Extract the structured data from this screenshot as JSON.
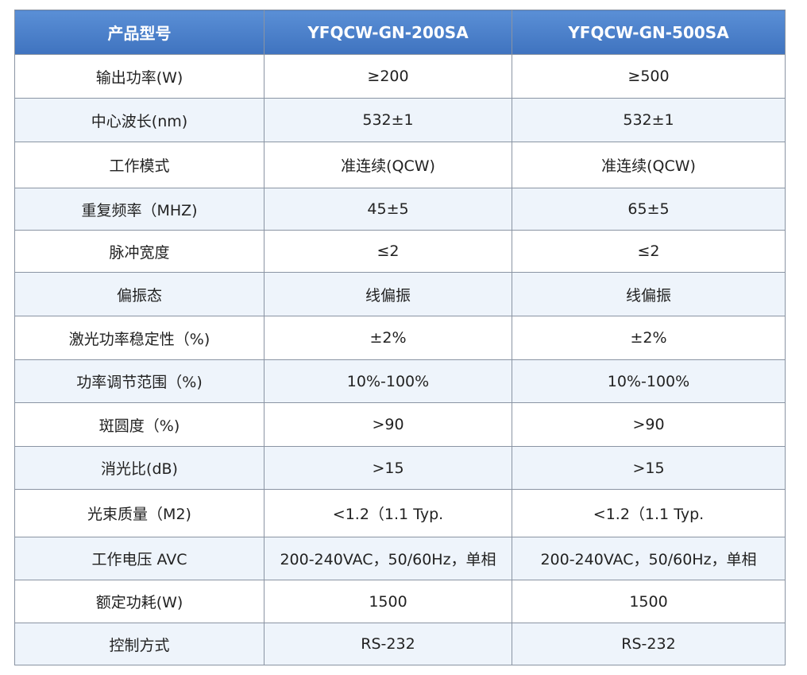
{
  "table": {
    "header": [
      "产品型号",
      "YFQCW-GN-200SA",
      "YFQCW-GN-500SA"
    ],
    "rows": [
      [
        "输出功率(W)",
        "≥200",
        "≥500"
      ],
      [
        "中心波长(nm)",
        "532±1",
        "532±1"
      ],
      [
        "工作模式",
        "准连续(QCW)",
        "准连续(QCW)"
      ],
      [
        "重复频率（MHZ)",
        "45±5",
        "65±5"
      ],
      [
        "脉冲宽度",
        "≤2",
        "≤2"
      ],
      [
        "偏振态",
        "线偏振",
        "线偏振"
      ],
      [
        "激光功率稳定性（%)",
        "±2%",
        "±2%"
      ],
      [
        "功率调节范围（%)",
        "10%-100%",
        "10%-100%"
      ],
      [
        "斑圆度（%)",
        ">90",
        ">90"
      ],
      [
        "消光比(dB)",
        ">15",
        ">15"
      ],
      [
        "光束质量（M2)",
        "<1.2（1.1 Typ.",
        "<1.2（1.1 Typ."
      ],
      [
        "工作电压 AVC",
        "200-240VAC，50/60Hz，单相",
        "200-240VAC，50/60Hz，单相"
      ],
      [
        "额定功耗(W)",
        "1500",
        "1500"
      ],
      [
        "控制方式",
        "RS-232",
        "RS-232"
      ]
    ]
  }
}
